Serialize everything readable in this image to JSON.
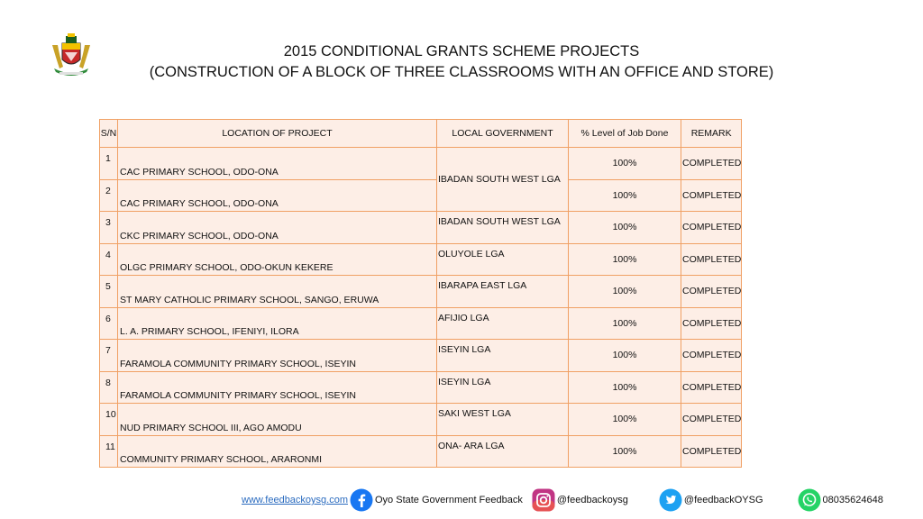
{
  "header": {
    "title_line1": "2015 CONDITIONAL GRANTS SCHEME PROJECTS",
    "title_line2": "(CONSTRUCTION OF A BLOCK OF THREE CLASSROOMS WITH AN OFFICE AND STORE)",
    "logo_icon": "state-coat-of-arms-icon"
  },
  "table": {
    "columns": [
      "S/N",
      "LOCATION OF PROJECT",
      "LOCAL GOVERNMENT",
      "% Level  of Job Done",
      "REMARK"
    ],
    "rows": [
      {
        "sn": "1",
        "location": "CAC PRIMARY SCHOOL, ODO-ONA",
        "lga": "IBADAN SOUTH WEST LGA",
        "pct": "100%",
        "remark": "COMPLETED"
      },
      {
        "sn": "2",
        "location": "CAC PRIMARY SCHOOL, ODO-ONA",
        "lga": "",
        "pct": "100%",
        "remark": "COMPLETED"
      },
      {
        "sn": "3",
        "location": "CKC PRIMARY SCHOOL, ODO-ONA",
        "lga": "IBADAN SOUTH WEST LGA",
        "pct": "100%",
        "remark": "COMPLETED"
      },
      {
        "sn": "4",
        "location": "OLGC PRIMARY SCHOOL, ODO-OKUN KEKERE",
        "lga": "OLUYOLE LGA",
        "pct": "100%",
        "remark": "COMPLETED"
      },
      {
        "sn": "5",
        "location": "ST MARY CATHOLIC PRIMARY SCHOOL, SANGO, ERUWA",
        "lga": "IBARAPA EAST LGA",
        "pct": "100%",
        "remark": "COMPLETED"
      },
      {
        "sn": "6",
        "location": "L. A. PRIMARY SCHOOL, IFENIYI, ILORA",
        "lga": "AFIJIO LGA",
        "pct": "100%",
        "remark": "COMPLETED"
      },
      {
        "sn": "7",
        "location": "FARAMOLA COMMUNITY PRIMARY SCHOOL, ISEYIN",
        "lga": " ISEYIN LGA",
        "pct": "100%",
        "remark": "COMPLETED"
      },
      {
        "sn": "8",
        "location": "FARAMOLA COMMUNITY PRIMARY SCHOOL, ISEYIN",
        "lga": "ISEYIN LGA",
        "pct": "100%",
        "remark": "COMPLETED"
      },
      {
        "sn": "10",
        "location": "NUD PRIMARY SCHOOL III, AGO AMODU",
        "lga": " SAKI WEST LGA",
        "pct": "100%",
        "remark": "COMPLETED"
      },
      {
        "sn": "11",
        "location": "COMMUNITY PRIMARY SCHOOL, ARARONMI",
        "lga": "ONA- ARA LGA",
        "pct": "100%",
        "remark": "COMPLETED"
      }
    ]
  },
  "footer": {
    "website": "www.feedbackoysg.com",
    "facebook_label": "Oyo State Government Feedback",
    "instagram_label": "@feedbackoysg",
    "twitter_label": "@feedbackOYSG",
    "whatsapp_label": "08035624648",
    "icons": [
      "facebook-icon",
      "instagram-icon",
      "twitter-icon",
      "whatsapp-icon"
    ],
    "colors": {
      "facebook": "#1877f2",
      "instagram": "#c13584",
      "twitter": "#1da1f2",
      "whatsapp": "#25d366",
      "link": "#2a6bbf"
    }
  },
  "colors": {
    "table_border": "#f0a064",
    "table_fill": "#fdeee6"
  }
}
